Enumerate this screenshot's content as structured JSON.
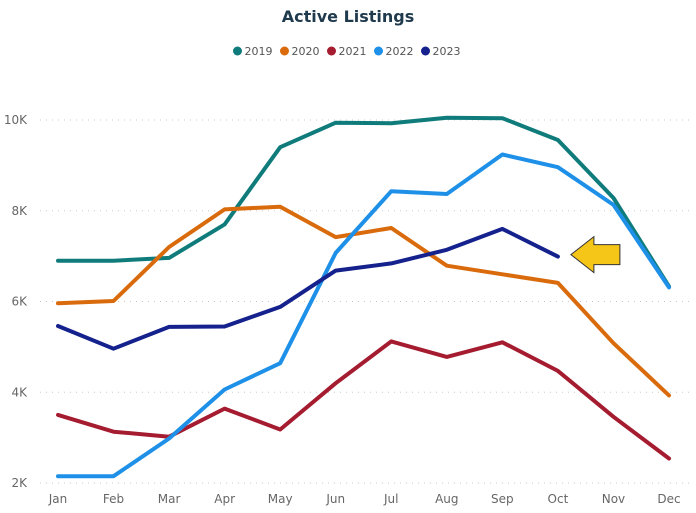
{
  "chart_data": {
    "type": "line",
    "title": "Active Listings",
    "xlabel": "",
    "ylabel": "",
    "categories": [
      "Jan",
      "Feb",
      "Mar",
      "Apr",
      "May",
      "Jun",
      "Jul",
      "Aug",
      "Sep",
      "Oct",
      "Nov",
      "Dec"
    ],
    "ylim": [
      2000,
      10000
    ],
    "yticks": [
      2000,
      4000,
      6000,
      8000,
      10000
    ],
    "ytick_labels": [
      "2K",
      "4K",
      "6K",
      "8K",
      "10K"
    ],
    "grid": true,
    "legend_position": "top-center",
    "series": [
      {
        "name": "2019",
        "color": "#0f7b7b",
        "values": [
          6900,
          6900,
          6960,
          7700,
          9400,
          9940,
          9930,
          10050,
          10040,
          9560,
          8280,
          6330
        ]
      },
      {
        "name": "2020",
        "color": "#d96b0c",
        "values": [
          5960,
          6010,
          7200,
          8030,
          8090,
          7420,
          7620,
          6790,
          6600,
          6410,
          5080,
          3930
        ]
      },
      {
        "name": "2021",
        "color": "#a51c30",
        "values": [
          3500,
          3130,
          3020,
          3640,
          3180,
          4200,
          5120,
          4780,
          5100,
          4470,
          3460,
          2540
        ]
      },
      {
        "name": "2022",
        "color": "#1e90e8",
        "values": [
          2150,
          2150,
          2980,
          4060,
          4640,
          7070,
          8430,
          8370,
          9240,
          8960,
          8130,
          6310
        ]
      },
      {
        "name": "2023",
        "color": "#15218c",
        "values": [
          5460,
          4960,
          5440,
          5450,
          5880,
          6680,
          6840,
          7140,
          7600,
          6990,
          null,
          null
        ]
      }
    ],
    "annotation": {
      "type": "arrow",
      "direction": "left",
      "color": "#f5c518",
      "points_to": "2023 Oct"
    }
  }
}
